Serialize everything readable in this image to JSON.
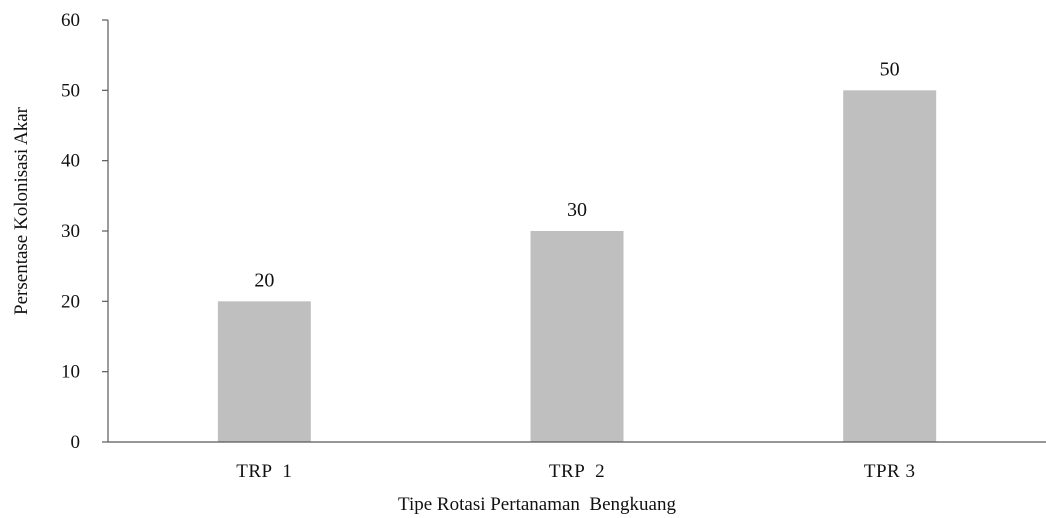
{
  "chart_data": {
    "type": "bar",
    "categories": [
      "TRP  1",
      "TRP  2",
      "TPR 3"
    ],
    "values": [
      20,
      30,
      50
    ],
    "data_labels": [
      "20",
      "30",
      "50"
    ],
    "title": "",
    "xlabel": "Tipe Rotasi Pertanaman  Bengkuang",
    "ylabel": "Persentase Kolonisasi Akar",
    "ylim": [
      0,
      60
    ],
    "yticks": [
      0,
      10,
      20,
      30,
      40,
      50,
      60
    ],
    "ytick_labels": [
      "0",
      "10",
      "20",
      "30",
      "40",
      "50",
      "60"
    ],
    "grid": false,
    "legend": "none",
    "bar_color": "#bfbfbf",
    "axis_color": "#595959"
  }
}
